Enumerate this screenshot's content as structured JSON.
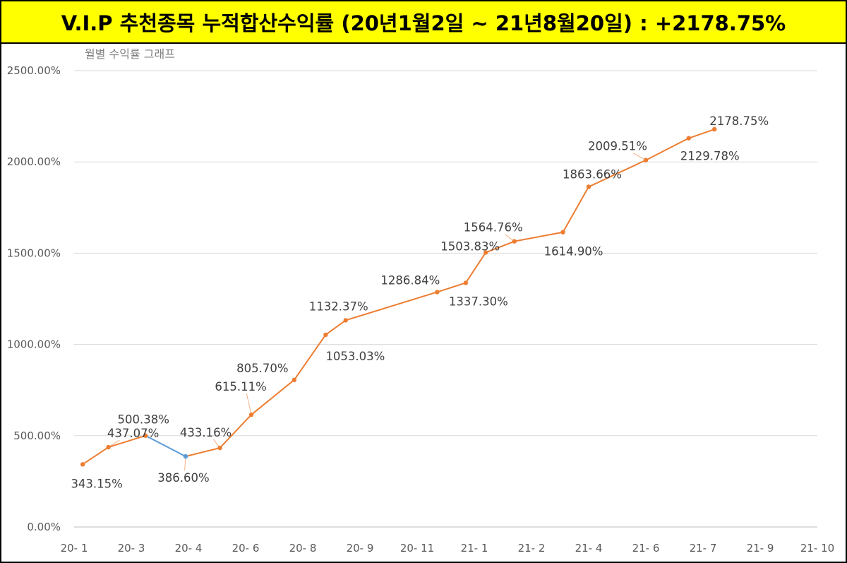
{
  "banner": {
    "title": "V.I.P 추천종목 누적합산수익률 (20년1월2일 ~ 21년8월20일) : +2178.75%"
  },
  "chart_data": {
    "type": "line",
    "title": "월별 수익률 그래프",
    "ylim": [
      0,
      2500
    ],
    "yticks": [
      "0.00%",
      "500.00%",
      "1000.00%",
      "1500.00%",
      "2000.00%",
      "2500.00%"
    ],
    "categories": [
      "20- 1",
      "20- 3",
      "20- 4",
      "20- 6",
      "20- 8",
      "20- 9",
      "20- 11",
      "21- 1",
      "21- 2",
      "21- 4",
      "21- 6",
      "21- 7",
      "21- 9",
      "21- 10"
    ],
    "points": [
      {
        "x": 0.15,
        "value": 343.15,
        "label": "343.15%"
      },
      {
        "x": 0.6,
        "value": 437.07,
        "label": "437.07%"
      },
      {
        "x": 1.25,
        "value": 500.38,
        "label": "500.38%"
      },
      {
        "x": 1.95,
        "value": 386.6,
        "label": "386.60%"
      },
      {
        "x": 2.55,
        "value": 433.16,
        "label": "433.16%"
      },
      {
        "x": 3.1,
        "value": 615.11,
        "label": "615.11%"
      },
      {
        "x": 3.85,
        "value": 805.7,
        "label": "805.70%"
      },
      {
        "x": 4.4,
        "value": 1053.03,
        "label": "1053.03%"
      },
      {
        "x": 4.75,
        "value": 1132.37,
        "label": "1132.37%"
      },
      {
        "x": 6.35,
        "value": 1286.84,
        "label": "1286.84%"
      },
      {
        "x": 6.85,
        "value": 1337.3,
        "label": "1337.30%"
      },
      {
        "x": 7.2,
        "value": 1503.83,
        "label": "1503.83%"
      },
      {
        "x": 7.7,
        "value": 1564.76,
        "label": "1564.76%"
      },
      {
        "x": 8.55,
        "value": 1614.9,
        "label": "1614.90%"
      },
      {
        "x": 9.0,
        "value": 1863.66,
        "label": "1863.66%"
      },
      {
        "x": 10.0,
        "value": 2009.51,
        "label": "2009.51%"
      },
      {
        "x": 10.75,
        "value": 2129.78,
        "label": "2129.78%"
      },
      {
        "x": 11.2,
        "value": 2178.75,
        "label": "2178.75%"
      }
    ],
    "colors": {
      "line": "#ed7d31",
      "down_segment": "#5b9bd5",
      "grid": "#d9d9d9",
      "axis_text": "#595959",
      "label_text": "#404040"
    }
  }
}
